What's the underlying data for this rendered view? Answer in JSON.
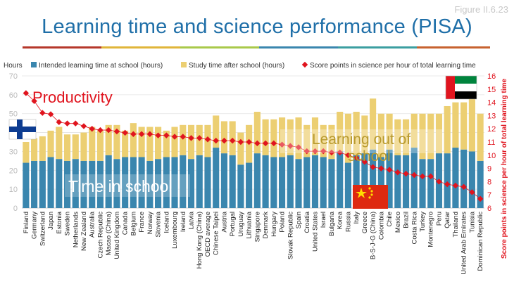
{
  "figure_label": "Figure II.6.23",
  "title": "Learning time and science performance (PISA)",
  "colors": {
    "title": "#1f6fa8",
    "intended": "#3a86ae",
    "study": "#eccf72",
    "score": "#e0141e",
    "rule": [
      "#b5372a",
      "#e0b53a",
      "#a9c94a",
      "#3a86ae",
      "#3b9ea0",
      "#c7622f"
    ]
  },
  "annotations": {
    "productivity": "Productivity",
    "learning_out": "Learning out of school",
    "time_in_school": "Time in school"
  },
  "chart_data": {
    "type": "bar",
    "stacked": true,
    "ylabel_left": "Hours",
    "ylabel_right": "Score points in science per hour of total learning time",
    "ylim_left": [
      0,
      70
    ],
    "yticks_left": [
      0,
      10,
      20,
      30,
      40,
      50,
      60,
      70
    ],
    "ylim_right": [
      6,
      16
    ],
    "yticks_right": [
      6,
      7,
      8,
      9,
      10,
      11,
      12,
      13,
      14,
      15,
      16
    ],
    "categories": [
      "Finland",
      "Germany",
      "Switzerland",
      "Japan",
      "Estonia",
      "Sweden",
      "Netherlands",
      "New Zealand",
      "Australia",
      "Czech Republic",
      "Macao (China)",
      "United Kingdom",
      "Canada",
      "Belgium",
      "France",
      "Norway",
      "Slovenia",
      "Iceland",
      "Luxembourg",
      "Ireland",
      "Latvia",
      "Hong Kong (China)",
      "OECD average",
      "Chinese Taipei",
      "Austria",
      "Portugal",
      "Uruguay",
      "Lithuania",
      "Singapore",
      "Denmark",
      "Hungary",
      "Poland",
      "Slovak Republic",
      "Spain",
      "Croatia",
      "United States",
      "Israel",
      "Bulgaria",
      "Korea",
      "Russia",
      "Italy",
      "Greece",
      "B-S-J-G (China)",
      "Colombia",
      "Chile",
      "Mexico",
      "Brazil",
      "Costa Rica",
      "Turkey",
      "Montenegro",
      "Peru",
      "Qatar",
      "Thailand",
      "United Arab Emirates",
      "Tunisia",
      "Dominican Republic"
    ],
    "series": [
      {
        "name": "Intended learning time at school (hours)",
        "values": [
          24,
          25,
          25,
          27,
          26,
          25,
          26,
          25,
          25,
          25,
          28,
          26,
          27,
          27,
          27,
          25,
          26,
          27,
          27,
          28,
          26,
          28,
          27,
          32,
          29,
          28,
          23,
          24,
          29,
          28,
          27,
          27,
          28,
          26,
          27,
          28,
          27,
          26,
          30,
          24,
          28,
          29,
          31,
          27,
          31,
          28,
          28,
          32,
          26,
          26,
          29,
          29,
          32,
          31,
          30,
          25
        ]
      },
      {
        "name": "Study time after school (hours)",
        "values": [
          11,
          12,
          13,
          14,
          17,
          14,
          13,
          15,
          18,
          16,
          16,
          18,
          14,
          18,
          16,
          18,
          17,
          14,
          16,
          16,
          18,
          16,
          17,
          17,
          17,
          18,
          17,
          20,
          22,
          19,
          20,
          21,
          19,
          22,
          17,
          20,
          17,
          18,
          21,
          26,
          23,
          20,
          27,
          23,
          19,
          19,
          19,
          18,
          24,
          24,
          21,
          25,
          24,
          25,
          29,
          25
        ]
      },
      {
        "name": "Score points in science per hour of total learning time",
        "axis": "right",
        "values": [
          14.7,
          14.1,
          13.2,
          13.1,
          12.5,
          12.4,
          12.4,
          12.2,
          12.0,
          11.9,
          11.9,
          11.8,
          11.7,
          11.6,
          11.6,
          11.6,
          11.5,
          11.5,
          11.4,
          11.4,
          11.3,
          11.3,
          11.2,
          11.1,
          11.1,
          11.1,
          11.0,
          11.0,
          10.9,
          10.9,
          10.9,
          10.8,
          10.7,
          10.6,
          10.3,
          10.3,
          10.3,
          10.2,
          10.2,
          10.0,
          9.8,
          9.5,
          9.1,
          9.0,
          8.9,
          8.7,
          8.6,
          8.5,
          8.4,
          8.4,
          8.0,
          7.8,
          7.7,
          7.6,
          7.2,
          6.7
        ]
      }
    ]
  }
}
